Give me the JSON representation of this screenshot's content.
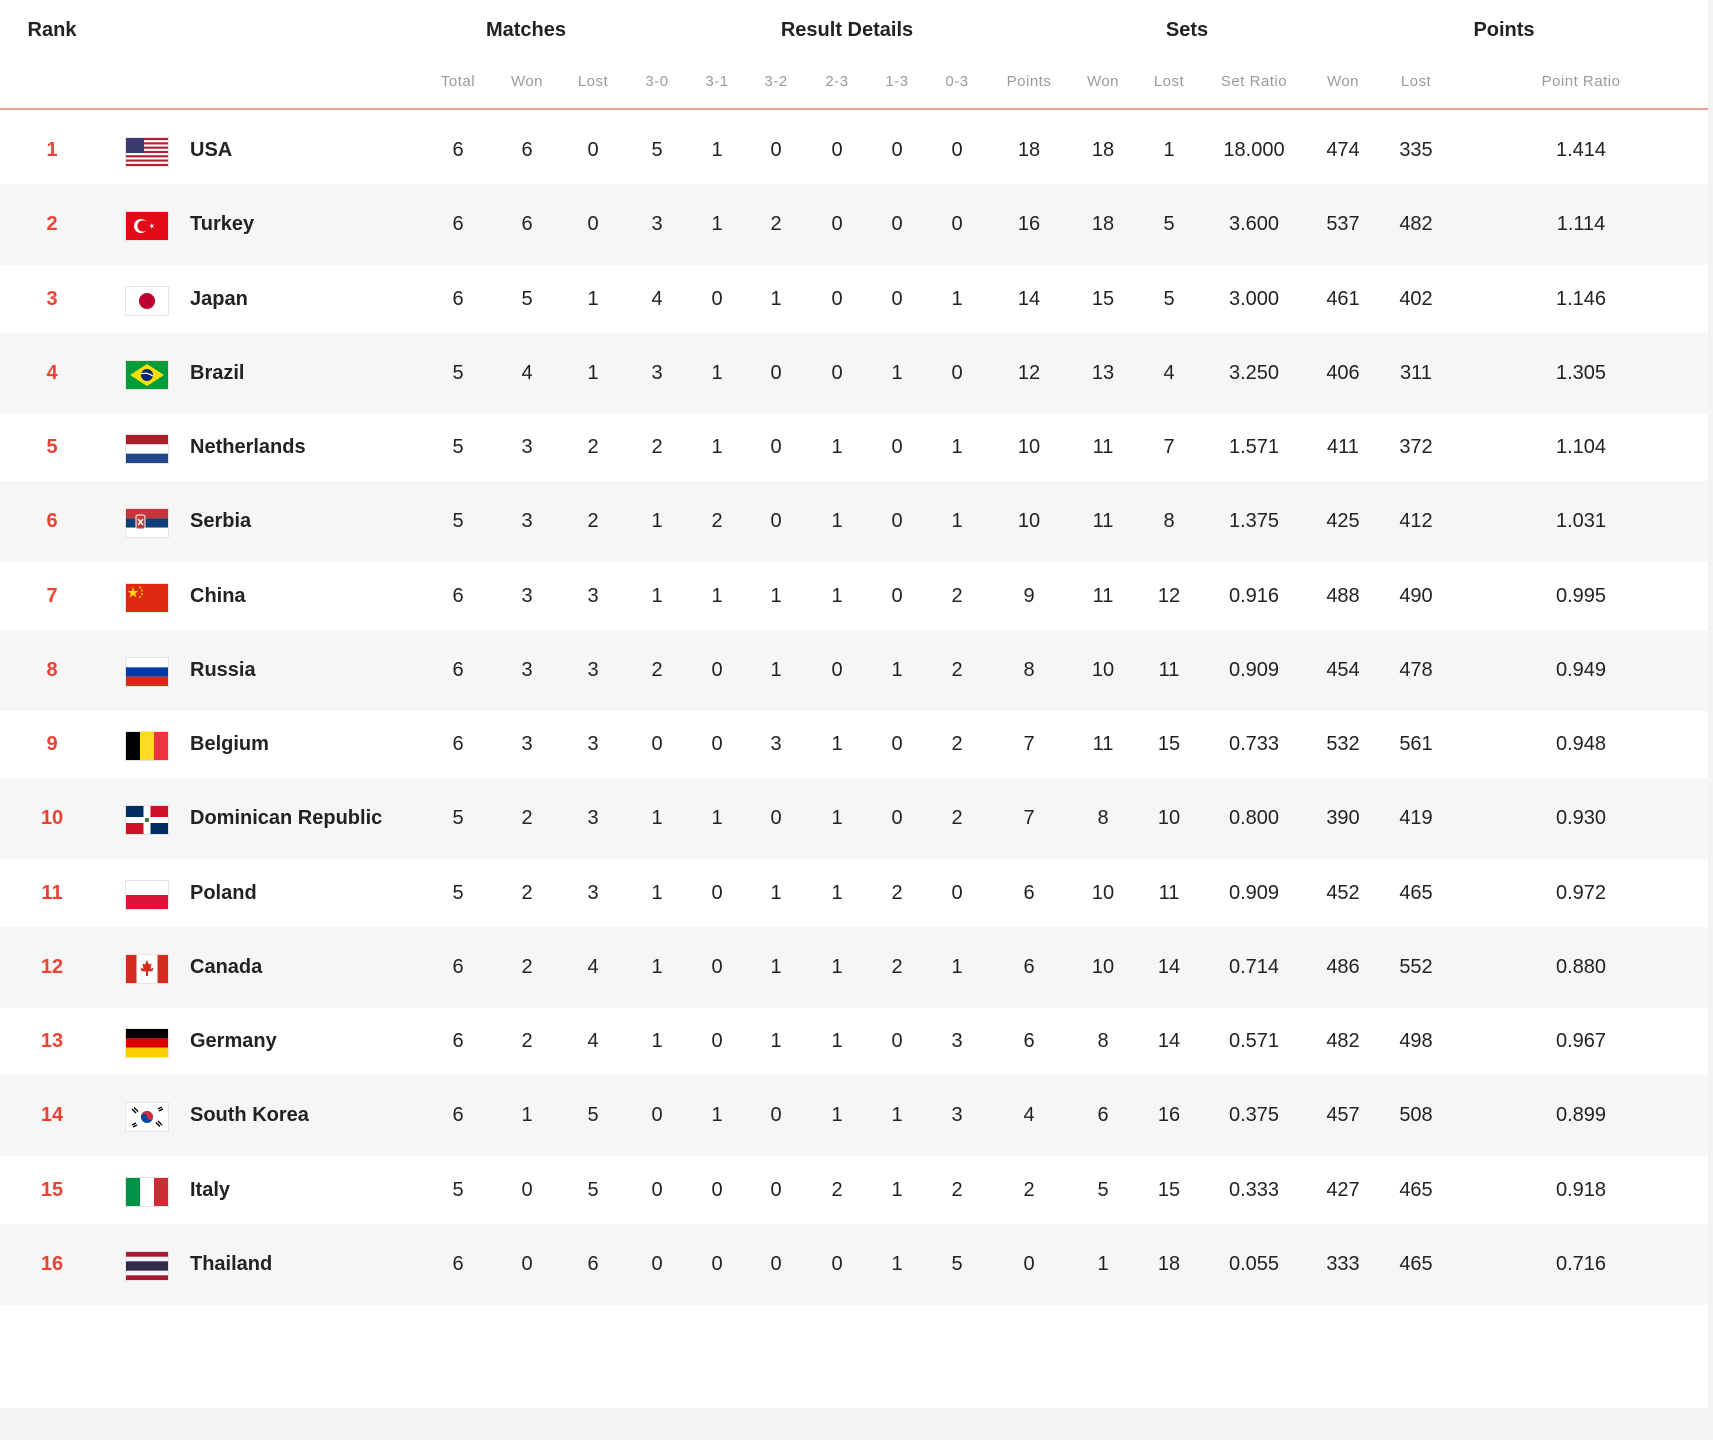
{
  "header": {
    "rank": "Rank",
    "matches": "Matches",
    "result_details": "Result Details",
    "sets": "Sets",
    "points": "Points",
    "sub": {
      "total": "Total",
      "won": "Won",
      "lost": "Lost",
      "r30": "3-0",
      "r31": "3-1",
      "r32": "3-2",
      "r23": "2-3",
      "r13": "1-3",
      "r03": "0-3",
      "pts": "Points",
      "sets_won": "Won",
      "sets_lost": "Lost",
      "set_ratio": "Set Ratio",
      "points_won": "Won",
      "points_lost": "Lost",
      "point_ratio": "Point Ratio"
    }
  },
  "colors": {
    "accent": "#ea4335",
    "header_rule": "#e8a49c",
    "alt_row": "#f6f6f6"
  },
  "rows": [
    {
      "rank": "1",
      "flag": "usa-flag-icon",
      "team": "USA",
      "total": "6",
      "won": "6",
      "lost": "0",
      "r30": "5",
      "r31": "1",
      "r32": "0",
      "r23": "0",
      "r13": "0",
      "r03": "0",
      "pts": "18",
      "sets_won": "18",
      "sets_lost": "1",
      "set_ratio": "18.000",
      "points_won": "474",
      "points_lost": "335",
      "point_ratio": "1.414"
    },
    {
      "rank": "2",
      "flag": "turkey-flag-icon",
      "team": "Turkey",
      "total": "6",
      "won": "6",
      "lost": "0",
      "r30": "3",
      "r31": "1",
      "r32": "2",
      "r23": "0",
      "r13": "0",
      "r03": "0",
      "pts": "16",
      "sets_won": "18",
      "sets_lost": "5",
      "set_ratio": "3.600",
      "points_won": "537",
      "points_lost": "482",
      "point_ratio": "1.114"
    },
    {
      "rank": "3",
      "flag": "japan-flag-icon",
      "team": "Japan",
      "total": "6",
      "won": "5",
      "lost": "1",
      "r30": "4",
      "r31": "0",
      "r32": "1",
      "r23": "0",
      "r13": "0",
      "r03": "1",
      "pts": "14",
      "sets_won": "15",
      "sets_lost": "5",
      "set_ratio": "3.000",
      "points_won": "461",
      "points_lost": "402",
      "point_ratio": "1.146"
    },
    {
      "rank": "4",
      "flag": "brazil-flag-icon",
      "team": "Brazil",
      "total": "5",
      "won": "4",
      "lost": "1",
      "r30": "3",
      "r31": "1",
      "r32": "0",
      "r23": "0",
      "r13": "1",
      "r03": "0",
      "pts": "12",
      "sets_won": "13",
      "sets_lost": "4",
      "set_ratio": "3.250",
      "points_won": "406",
      "points_lost": "311",
      "point_ratio": "1.305"
    },
    {
      "rank": "5",
      "flag": "netherlands-flag-icon",
      "team": "Netherlands",
      "total": "5",
      "won": "3",
      "lost": "2",
      "r30": "2",
      "r31": "1",
      "r32": "0",
      "r23": "1",
      "r13": "0",
      "r03": "1",
      "pts": "10",
      "sets_won": "11",
      "sets_lost": "7",
      "set_ratio": "1.571",
      "points_won": "411",
      "points_lost": "372",
      "point_ratio": "1.104"
    },
    {
      "rank": "6",
      "flag": "serbia-flag-icon",
      "team": "Serbia",
      "total": "5",
      "won": "3",
      "lost": "2",
      "r30": "1",
      "r31": "2",
      "r32": "0",
      "r23": "1",
      "r13": "0",
      "r03": "1",
      "pts": "10",
      "sets_won": "11",
      "sets_lost": "8",
      "set_ratio": "1.375",
      "points_won": "425",
      "points_lost": "412",
      "point_ratio": "1.031"
    },
    {
      "rank": "7",
      "flag": "china-flag-icon",
      "team": "China",
      "total": "6",
      "won": "3",
      "lost": "3",
      "r30": "1",
      "r31": "1",
      "r32": "1",
      "r23": "1",
      "r13": "0",
      "r03": "2",
      "pts": "9",
      "sets_won": "11",
      "sets_lost": "12",
      "set_ratio": "0.916",
      "points_won": "488",
      "points_lost": "490",
      "point_ratio": "0.995"
    },
    {
      "rank": "8",
      "flag": "russia-flag-icon",
      "team": "Russia",
      "total": "6",
      "won": "3",
      "lost": "3",
      "r30": "2",
      "r31": "0",
      "r32": "1",
      "r23": "0",
      "r13": "1",
      "r03": "2",
      "pts": "8",
      "sets_won": "10",
      "sets_lost": "11",
      "set_ratio": "0.909",
      "points_won": "454",
      "points_lost": "478",
      "point_ratio": "0.949"
    },
    {
      "rank": "9",
      "flag": "belgium-flag-icon",
      "team": "Belgium",
      "total": "6",
      "won": "3",
      "lost": "3",
      "r30": "0",
      "r31": "0",
      "r32": "3",
      "r23": "1",
      "r13": "0",
      "r03": "2",
      "pts": "7",
      "sets_won": "11",
      "sets_lost": "15",
      "set_ratio": "0.733",
      "points_won": "532",
      "points_lost": "561",
      "point_ratio": "0.948"
    },
    {
      "rank": "10",
      "flag": "dominican-republic-flag-icon",
      "team": "Dominican Republic",
      "total": "5",
      "won": "2",
      "lost": "3",
      "r30": "1",
      "r31": "1",
      "r32": "0",
      "r23": "1",
      "r13": "0",
      "r03": "2",
      "pts": "7",
      "sets_won": "8",
      "sets_lost": "10",
      "set_ratio": "0.800",
      "points_won": "390",
      "points_lost": "419",
      "point_ratio": "0.930"
    },
    {
      "rank": "11",
      "flag": "poland-flag-icon",
      "team": "Poland",
      "total": "5",
      "won": "2",
      "lost": "3",
      "r30": "1",
      "r31": "0",
      "r32": "1",
      "r23": "1",
      "r13": "2",
      "r03": "0",
      "pts": "6",
      "sets_won": "10",
      "sets_lost": "11",
      "set_ratio": "0.909",
      "points_won": "452",
      "points_lost": "465",
      "point_ratio": "0.972"
    },
    {
      "rank": "12",
      "flag": "canada-flag-icon",
      "team": "Canada",
      "total": "6",
      "won": "2",
      "lost": "4",
      "r30": "1",
      "r31": "0",
      "r32": "1",
      "r23": "1",
      "r13": "2",
      "r03": "1",
      "pts": "6",
      "sets_won": "10",
      "sets_lost": "14",
      "set_ratio": "0.714",
      "points_won": "486",
      "points_lost": "552",
      "point_ratio": "0.880"
    },
    {
      "rank": "13",
      "flag": "germany-flag-icon",
      "team": "Germany",
      "total": "6",
      "won": "2",
      "lost": "4",
      "r30": "1",
      "r31": "0",
      "r32": "1",
      "r23": "1",
      "r13": "0",
      "r03": "3",
      "pts": "6",
      "sets_won": "8",
      "sets_lost": "14",
      "set_ratio": "0.571",
      "points_won": "482",
      "points_lost": "498",
      "point_ratio": "0.967"
    },
    {
      "rank": "14",
      "flag": "south-korea-flag-icon",
      "team": "South Korea",
      "total": "6",
      "won": "1",
      "lost": "5",
      "r30": "0",
      "r31": "1",
      "r32": "0",
      "r23": "1",
      "r13": "1",
      "r03": "3",
      "pts": "4",
      "sets_won": "6",
      "sets_lost": "16",
      "set_ratio": "0.375",
      "points_won": "457",
      "points_lost": "508",
      "point_ratio": "0.899"
    },
    {
      "rank": "15",
      "flag": "italy-flag-icon",
      "team": "Italy",
      "total": "5",
      "won": "0",
      "lost": "5",
      "r30": "0",
      "r31": "0",
      "r32": "0",
      "r23": "2",
      "r13": "1",
      "r03": "2",
      "pts": "2",
      "sets_won": "5",
      "sets_lost": "15",
      "set_ratio": "0.333",
      "points_won": "427",
      "points_lost": "465",
      "point_ratio": "0.918"
    },
    {
      "rank": "16",
      "flag": "thailand-flag-icon",
      "team": "Thailand",
      "total": "6",
      "won": "0",
      "lost": "6",
      "r30": "0",
      "r31": "0",
      "r32": "0",
      "r23": "0",
      "r13": "1",
      "r03": "5",
      "pts": "0",
      "sets_won": "1",
      "sets_lost": "18",
      "set_ratio": "0.055",
      "points_won": "333",
      "points_lost": "465",
      "point_ratio": "0.716"
    }
  ]
}
